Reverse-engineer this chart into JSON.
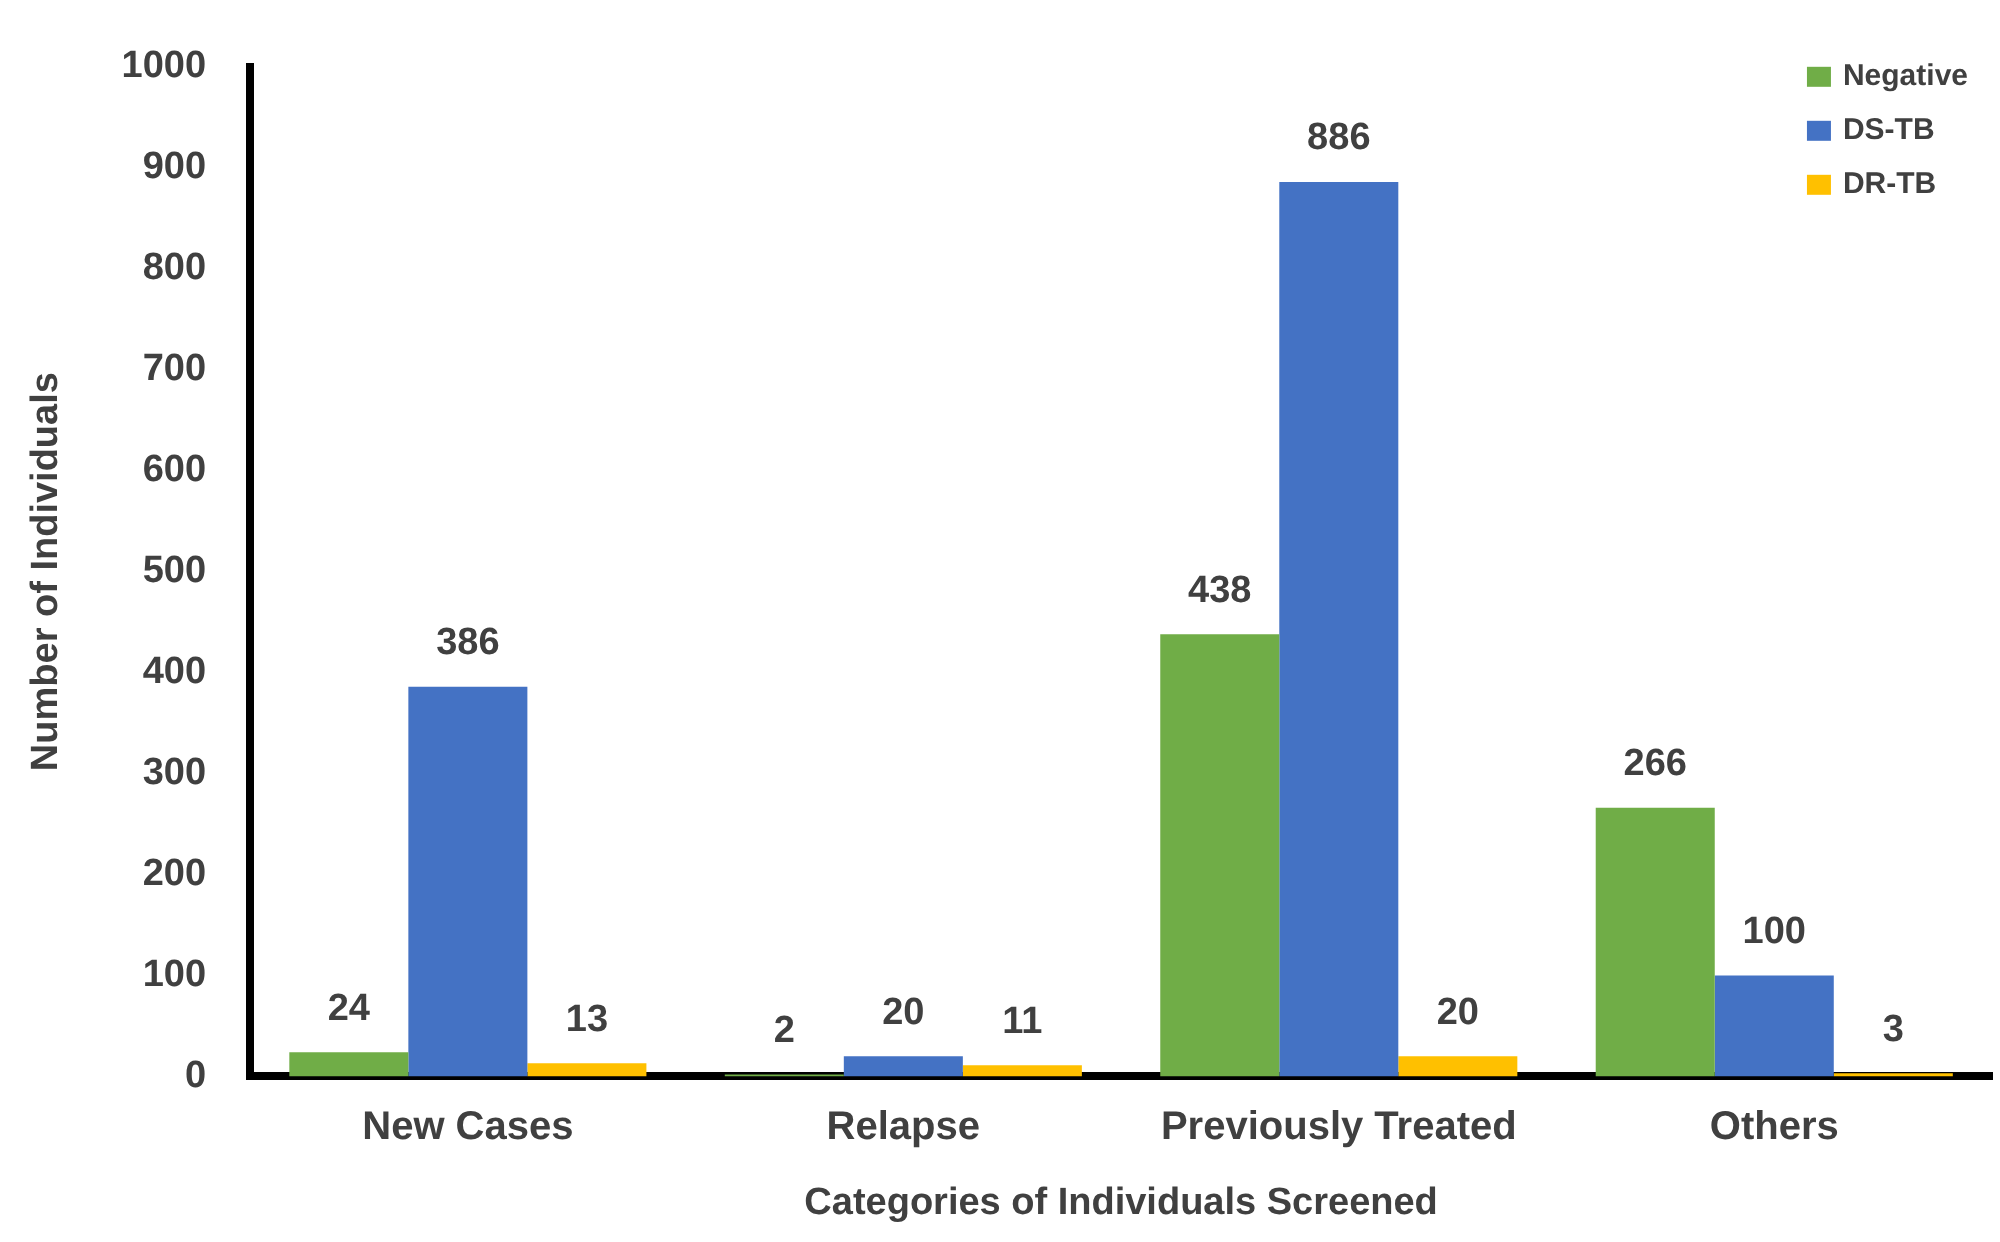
{
  "chart_data": {
    "type": "bar",
    "xlabel": "Categories of Individuals Screened",
    "ylabel": "Number of Individuals",
    "categories": [
      "New Cases",
      "Relapse",
      "Previously Treated",
      "Others"
    ],
    "series": [
      {
        "name": "Negative",
        "color": "#70ad47",
        "values": [
          24,
          2,
          438,
          266
        ]
      },
      {
        "name": "DS-TB",
        "color": "#4472c4",
        "values": [
          386,
          20,
          886,
          100
        ]
      },
      {
        "name": "DR-TB",
        "color": "#ffc000",
        "values": [
          13,
          11,
          20,
          3
        ]
      }
    ],
    "ylim": [
      0,
      1000
    ],
    "yticks": [
      0,
      100,
      200,
      300,
      400,
      500,
      600,
      700,
      800,
      900,
      1000
    ],
    "grid": false,
    "legend": "top right",
    "data_labels": true
  }
}
